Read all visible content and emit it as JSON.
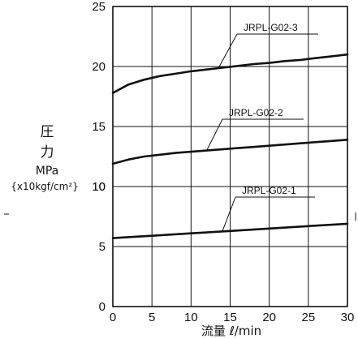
{
  "chart_data": {
    "type": "line",
    "xlabel": "流量 ℓ/min",
    "ylabel": [
      "圧",
      "力",
      "MPa",
      "{x10kgf/cm²}"
    ],
    "xlim": [
      0,
      30
    ],
    "ylim": [
      0,
      25
    ],
    "x_ticks": [
      "0",
      "5",
      "10",
      "15",
      "20",
      "25",
      "30"
    ],
    "y_ticks": [
      "0",
      "5",
      "10",
      "15",
      "20",
      "25"
    ],
    "y_ticks_secondary": [
      "10"
    ],
    "grid": true,
    "series": [
      {
        "name": "JRPL-G02-3",
        "x": [
          0,
          2,
          4,
          6,
          8,
          10,
          12,
          14,
          16,
          18,
          20,
          22,
          24,
          26,
          28,
          30
        ],
        "y": [
          17.8,
          18.5,
          18.9,
          19.2,
          19.4,
          19.6,
          19.75,
          19.9,
          20.05,
          20.2,
          20.3,
          20.45,
          20.55,
          20.7,
          20.85,
          21.0
        ]
      },
      {
        "name": "JRPL-G02-2",
        "x": [
          0,
          2,
          4,
          6,
          8,
          10,
          12,
          14,
          16,
          18,
          20,
          22,
          24,
          26,
          28,
          30
        ],
        "y": [
          11.9,
          12.25,
          12.5,
          12.65,
          12.8,
          12.9,
          13.0,
          13.1,
          13.2,
          13.3,
          13.4,
          13.5,
          13.6,
          13.7,
          13.8,
          13.9
        ]
      },
      {
        "name": "JRPL-G02-1",
        "x": [
          0,
          5,
          10,
          15,
          20,
          25,
          30
        ],
        "y": [
          5.7,
          5.9,
          6.1,
          6.3,
          6.5,
          6.7,
          6.9
        ]
      }
    ]
  }
}
